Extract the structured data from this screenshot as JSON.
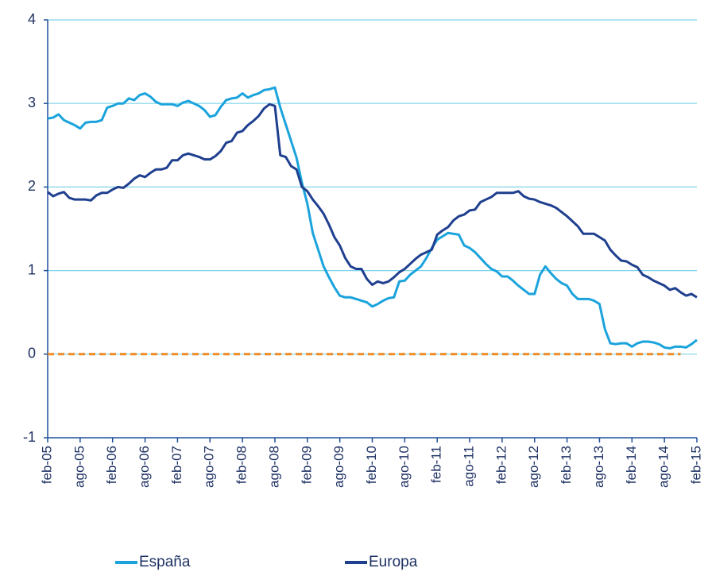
{
  "chart_data": {
    "type": "line",
    "categories": [
      "feb-05",
      null,
      null,
      null,
      null,
      null,
      "ago-05",
      null,
      null,
      null,
      null,
      null,
      "feb-06",
      null,
      null,
      null,
      null,
      null,
      "ago-06",
      null,
      null,
      null,
      null,
      null,
      "feb-07",
      null,
      null,
      null,
      null,
      null,
      "ago-07",
      null,
      null,
      null,
      null,
      null,
      "feb-08",
      null,
      null,
      null,
      null,
      null,
      "ago-08",
      null,
      null,
      null,
      null,
      null,
      "feb-09",
      null,
      null,
      null,
      null,
      null,
      "ago-09",
      null,
      null,
      null,
      null,
      null,
      "feb-10",
      null,
      null,
      null,
      null,
      null,
      "ago-10",
      null,
      null,
      null,
      null,
      null,
      "feb-11",
      null,
      null,
      null,
      null,
      null,
      "ago-11",
      null,
      null,
      null,
      null,
      null,
      "feb-12",
      null,
      null,
      null,
      null,
      null,
      "ago-12",
      null,
      null,
      null,
      null,
      null,
      "feb-13",
      null,
      null,
      null,
      null,
      null,
      "ago-13",
      null,
      null,
      null,
      null,
      null,
      "feb-14",
      null,
      null,
      null,
      null,
      null,
      "ago-14",
      null,
      null,
      null,
      null,
      null,
      "feb-15"
    ],
    "series": [
      {
        "name": "España",
        "color": "#1aa3dc",
        "values": [
          2.82,
          2.83,
          2.87,
          2.8,
          2.77,
          2.74,
          2.7,
          2.77,
          2.78,
          2.78,
          2.8,
          2.95,
          2.97,
          3.0,
          3.0,
          3.06,
          3.04,
          3.1,
          3.12,
          3.08,
          3.02,
          2.99,
          2.99,
          2.99,
          2.97,
          3.01,
          3.03,
          3.0,
          2.97,
          2.92,
          2.84,
          2.86,
          2.96,
          3.04,
          3.06,
          3.07,
          3.12,
          3.07,
          3.1,
          3.12,
          3.16,
          3.17,
          3.19,
          2.95,
          2.75,
          2.55,
          2.35,
          2.05,
          1.8,
          1.45,
          1.25,
          1.05,
          0.92,
          0.8,
          0.7,
          0.68,
          0.68,
          0.66,
          0.64,
          0.62,
          0.57,
          0.6,
          0.64,
          0.67,
          0.68,
          0.87,
          0.88,
          0.95,
          1.0,
          1.05,
          1.15,
          1.27,
          1.37,
          1.41,
          1.45,
          1.44,
          1.43,
          1.3,
          1.27,
          1.22,
          1.15,
          1.08,
          1.02,
          0.99,
          0.93,
          0.93,
          0.88,
          0.82,
          0.77,
          0.72,
          0.72,
          0.95,
          1.05,
          0.97,
          0.9,
          0.85,
          0.82,
          0.72,
          0.66,
          0.66,
          0.66,
          0.64,
          0.6,
          0.3,
          0.13,
          0.12,
          0.13,
          0.13,
          0.09,
          0.13,
          0.15,
          0.15,
          0.14,
          0.12,
          0.08,
          0.07,
          0.09,
          0.09,
          0.08,
          0.12,
          0.17
        ]
      },
      {
        "name": "Europa",
        "color": "#1f3f8f",
        "values": [
          1.94,
          1.89,
          1.92,
          1.94,
          1.87,
          1.85,
          1.85,
          1.85,
          1.84,
          1.9,
          1.93,
          1.93,
          1.97,
          2.0,
          1.99,
          2.04,
          2.1,
          2.14,
          2.12,
          2.17,
          2.21,
          2.21,
          2.23,
          2.32,
          2.32,
          2.38,
          2.4,
          2.38,
          2.36,
          2.33,
          2.33,
          2.37,
          2.43,
          2.53,
          2.55,
          2.65,
          2.67,
          2.74,
          2.79,
          2.85,
          2.94,
          2.99,
          2.97,
          2.38,
          2.36,
          2.25,
          2.21,
          2.0,
          1.95,
          1.85,
          1.77,
          1.68,
          1.55,
          1.4,
          1.3,
          1.15,
          1.05,
          1.02,
          1.02,
          0.9,
          0.83,
          0.87,
          0.85,
          0.87,
          0.92,
          0.98,
          1.02,
          1.08,
          1.14,
          1.19,
          1.22,
          1.25,
          1.43,
          1.48,
          1.52,
          1.6,
          1.65,
          1.67,
          1.72,
          1.73,
          1.82,
          1.85,
          1.88,
          1.93,
          1.93,
          1.93,
          1.93,
          1.95,
          1.89,
          1.86,
          1.85,
          1.82,
          1.8,
          1.78,
          1.75,
          1.7,
          1.65,
          1.59,
          1.53,
          1.44,
          1.44,
          1.44,
          1.4,
          1.36,
          1.25,
          1.18,
          1.12,
          1.11,
          1.07,
          1.04,
          0.95,
          0.92,
          0.88,
          0.85,
          0.82,
          0.77,
          0.79,
          0.74,
          0.7,
          0.72,
          0.68
        ]
      }
    ],
    "reference_line": {
      "value": 0,
      "color": "#f08a24"
    },
    "ylim": [
      -1,
      4
    ],
    "yticks": [
      -1,
      0,
      1,
      2,
      3,
      4
    ],
    "grid": true,
    "grid_color": "#7fd3ea",
    "axis_color": "#1f4e9a",
    "legend": "bottom"
  }
}
